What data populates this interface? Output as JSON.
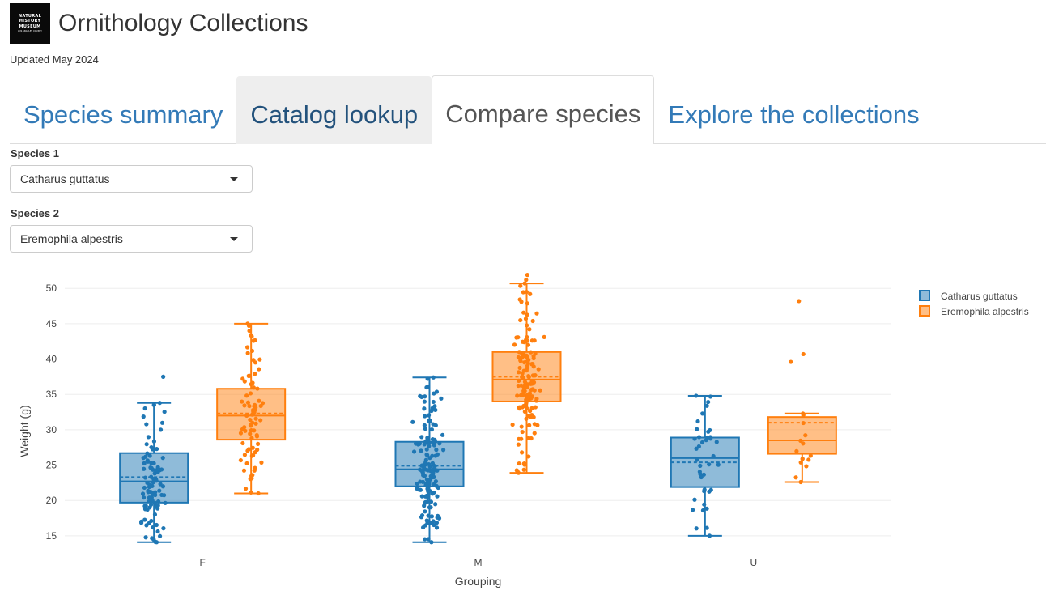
{
  "header": {
    "logo_lines": [
      "NATURAL",
      "HISTORY",
      "MUSEUM"
    ],
    "logo_subline": "LOS ANGELES COUNTY",
    "title": "Ornithology Collections",
    "updated": "Updated May 2024"
  },
  "tabs": [
    {
      "label": "Species summary"
    },
    {
      "label": "Catalog lookup"
    },
    {
      "label": "Compare species"
    },
    {
      "label": "Explore the collections"
    }
  ],
  "active_tab": "Compare species",
  "inputs": {
    "species1": {
      "label": "Species 1",
      "value": "Catharus guttatus"
    },
    "species2": {
      "label": "Species 2",
      "value": "Eremophila alpestris"
    }
  },
  "chart_data": {
    "type": "box",
    "title": "",
    "xlabel": "Grouping",
    "ylabel": "Weight (g)",
    "categories": [
      "F",
      "M",
      "U"
    ],
    "ylim": [
      13.5,
      53
    ],
    "yticks": [
      15,
      20,
      25,
      30,
      35,
      40,
      45,
      50
    ],
    "grid": true,
    "legend_position": "top-right",
    "boxes_show_mean": true,
    "jittered_points": true,
    "series": [
      {
        "name": "Catharus guttatus",
        "color": "#1f77b4",
        "boxes": [
          {
            "category": "F",
            "min": 14.1,
            "q1": 19.7,
            "median": 22.7,
            "mean": 23.3,
            "q3": 26.7,
            "max": 33.8,
            "n": 95,
            "outliers": [
              37.5
            ]
          },
          {
            "category": "M",
            "min": 14.1,
            "q1": 22.0,
            "median": 24.4,
            "mean": 24.9,
            "q3": 28.3,
            "max": 37.4,
            "n": 150,
            "outliers": []
          },
          {
            "category": "U",
            "min": 15.0,
            "q1": 21.9,
            "median": 26.0,
            "mean": 25.4,
            "q3": 28.9,
            "max": 34.8,
            "n": 38,
            "outliers": []
          }
        ]
      },
      {
        "name": "Eremophila alpestris",
        "color": "#ff7f0e",
        "boxes": [
          {
            "category": "F",
            "min": 21.0,
            "q1": 28.6,
            "median": 32.0,
            "mean": 32.3,
            "q3": 35.8,
            "max": 45.0,
            "n": 80,
            "outliers": []
          },
          {
            "category": "M",
            "min": 23.9,
            "q1": 34.0,
            "median": 37.1,
            "mean": 37.5,
            "q3": 41.0,
            "max": 50.7,
            "n": 140,
            "outliers": [
              51.2,
              51.9
            ]
          },
          {
            "category": "U",
            "min": 22.6,
            "q1": 26.6,
            "median": 28.5,
            "mean": 31.0,
            "q3": 31.8,
            "max": 32.3,
            "n": 16,
            "outliers": [
              39.6,
              40.7,
              48.2
            ]
          }
        ]
      }
    ]
  }
}
